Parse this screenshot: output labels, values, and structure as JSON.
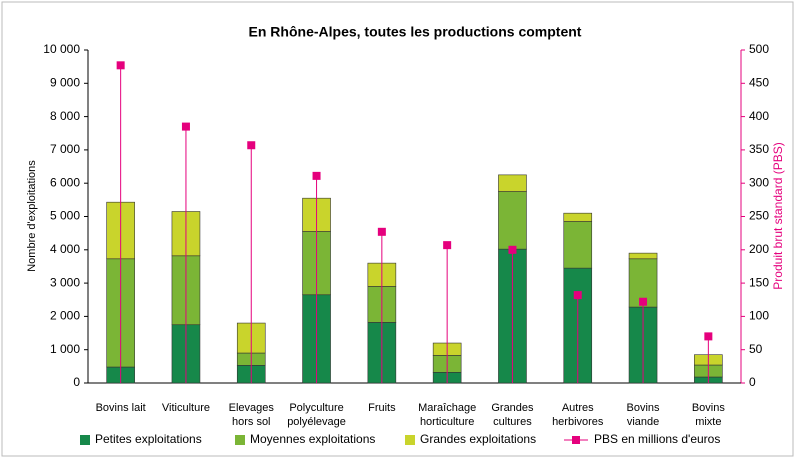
{
  "chart_data": {
    "type": "bar",
    "title": "En Rhône-Alpes, toutes les productions comptent",
    "y_label": "Nombre d'exploitations",
    "y2_label": "Produit brut standard (PBS)",
    "stacked": true,
    "categories": [
      [
        "Bovins lait"
      ],
      [
        "Viticulture"
      ],
      [
        "Elevages",
        "hors sol"
      ],
      [
        "Polyculture",
        "polyélevage"
      ],
      [
        "Fruits"
      ],
      [
        "Maraîchage",
        "horticulture"
      ],
      [
        "Grandes",
        "cultures"
      ],
      [
        "Autres",
        "herbivores"
      ],
      [
        "Bovins",
        "viande"
      ],
      [
        "Bovins",
        "mixte"
      ]
    ],
    "series": [
      {
        "name": "Petites exploitations",
        "color": "#16884a",
        "type": "bar",
        "values": [
          480,
          1750,
          530,
          2650,
          1820,
          320,
          4020,
          3450,
          2280,
          180
        ]
      },
      {
        "name": "Moyennes exploitations",
        "color": "#7bb536",
        "type": "bar",
        "values": [
          3250,
          2070,
          370,
          1900,
          1080,
          510,
          1730,
          1400,
          1450,
          360
        ]
      },
      {
        "name": "Grandes exploitations",
        "color": "#c9d42c",
        "type": "bar",
        "values": [
          1700,
          1330,
          900,
          1000,
          700,
          370,
          500,
          250,
          170,
          310
        ]
      },
      {
        "name": "PBS en millions d'euros",
        "color": "#e5007d",
        "type": "line",
        "axis": "y2",
        "values": [
          477,
          385,
          357,
          311,
          227,
          207,
          200,
          132,
          122,
          70
        ]
      }
    ],
    "ylim": [
      0,
      10000
    ],
    "yticks": [
      0,
      {
        "value": 1000,
        "label": "1 000"
      },
      {
        "value": 2000,
        "label": "2 000"
      },
      {
        "value": 3000,
        "label": "3 000"
      },
      {
        "value": 4000,
        "label": "4 000"
      },
      {
        "value": 5000,
        "label": "5 000"
      },
      {
        "value": 6000,
        "label": "6 000"
      },
      {
        "value": 7000,
        "label": "7 000"
      },
      {
        "value": 8000,
        "label": "8 000"
      },
      {
        "value": 9000,
        "label": "9 000"
      },
      {
        "value": 10000,
        "label": "10 000"
      }
    ],
    "y2lim": [
      0,
      500
    ],
    "y2ticks": [
      0,
      50,
      100,
      150,
      200,
      250,
      300,
      350,
      400,
      450,
      500
    ],
    "y2_color": "#e5007d",
    "legend": "bottom"
  }
}
